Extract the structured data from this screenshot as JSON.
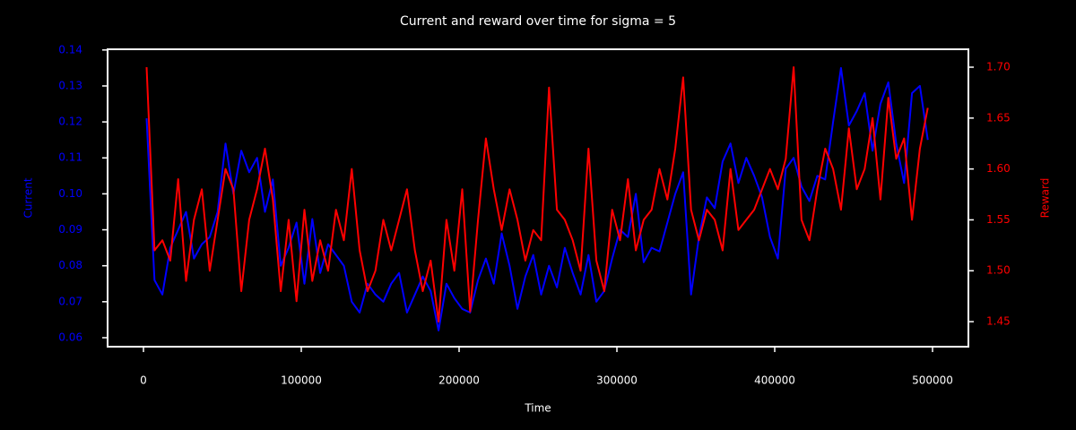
{
  "chart_data": {
    "type": "line",
    "title": "Current and reward over time for sigma = 5",
    "xlabel": "Time",
    "ylabel": "Current",
    "y2label": "Reward",
    "xlim": [
      -22727,
      522727
    ],
    "ylim": [
      0.0575,
      0.1402
    ],
    "y2lim": [
      1.4254,
      1.7176
    ],
    "xticks": [
      0,
      100000,
      200000,
      300000,
      400000,
      500000
    ],
    "yticks": [
      0.06,
      0.07,
      0.08,
      0.09,
      {
        "value": 0.1,
        "label": "0.10"
      },
      0.11,
      0.12,
      0.13,
      0.14
    ],
    "y2ticks": [
      1.45,
      {
        "value": 1.5,
        "label": "1.50"
      },
      1.55,
      {
        "value": 1.6,
        "label": "1.60"
      },
      1.65,
      {
        "value": 1.7,
        "label": "1.70"
      }
    ],
    "x": [
      2000,
      7000,
      12000,
      17000,
      22000,
      27000,
      32000,
      37000,
      42000,
      47000,
      52000,
      57000,
      62000,
      67000,
      72000,
      77000,
      82000,
      87000,
      92000,
      97000,
      102000,
      107000,
      112000,
      117000,
      122000,
      127000,
      132000,
      137000,
      142000,
      147000,
      152000,
      157000,
      162000,
      167000,
      172000,
      177000,
      182000,
      187000,
      192000,
      197000,
      202000,
      207000,
      212000,
      217000,
      222000,
      227000,
      232000,
      237000,
      242000,
      247000,
      252000,
      257000,
      262000,
      267000,
      272000,
      277000,
      282000,
      287000,
      292000,
      297000,
      302000,
      307000,
      312000,
      317000,
      322000,
      327000,
      332000,
      337000,
      342000,
      347000,
      352000,
      357000,
      362000,
      367000,
      372000,
      377000,
      382000,
      387000,
      392000,
      397000,
      402000,
      407000,
      412000,
      417000,
      422000,
      427000,
      432000,
      437000,
      442000,
      447000,
      452000,
      457000,
      462000,
      467000,
      472000,
      477000,
      482000,
      487000,
      492000,
      497000
    ],
    "series": [
      {
        "color": "#0000ff",
        "axis": "y",
        "values": [
          0.121,
          0.076,
          0.072,
          0.085,
          0.09,
          0.095,
          0.082,
          0.086,
          0.088,
          0.095,
          0.114,
          0.1,
          0.112,
          0.106,
          0.11,
          0.095,
          0.104,
          0.08,
          0.085,
          0.092,
          0.075,
          0.093,
          0.078,
          0.086,
          0.083,
          0.08,
          0.07,
          0.067,
          0.075,
          0.072,
          0.07,
          0.075,
          0.078,
          0.067,
          0.072,
          0.077,
          0.073,
          0.062,
          0.075,
          0.071,
          0.068,
          0.067,
          0.076,
          0.082,
          0.075,
          0.089,
          0.08,
          0.068,
          0.077,
          0.083,
          0.072,
          0.08,
          0.074,
          0.085,
          0.078,
          0.072,
          0.083,
          0.07,
          0.073,
          0.082,
          0.09,
          0.088,
          0.1,
          0.081,
          0.085,
          0.084,
          0.092,
          0.1,
          0.106,
          0.072,
          0.088,
          0.099,
          0.096,
          0.109,
          0.114,
          0.103,
          0.11,
          0.105,
          0.099,
          0.088,
          0.082,
          0.107,
          0.11,
          0.102,
          0.098,
          0.105,
          0.104,
          0.12,
          0.135,
          0.119,
          0.123,
          0.128,
          0.112,
          0.125,
          0.131,
          0.114,
          0.103,
          0.128,
          0.13,
          0.115
        ]
      },
      {
        "color": "#ff0000",
        "axis": "y2",
        "values": [
          1.7,
          1.52,
          1.53,
          1.51,
          1.59,
          1.49,
          1.55,
          1.58,
          1.5,
          1.55,
          1.6,
          1.58,
          1.48,
          1.55,
          1.58,
          1.62,
          1.57,
          1.48,
          1.55,
          1.47,
          1.56,
          1.49,
          1.53,
          1.5,
          1.56,
          1.53,
          1.6,
          1.52,
          1.48,
          1.5,
          1.55,
          1.52,
          1.55,
          1.58,
          1.52,
          1.48,
          1.51,
          1.45,
          1.55,
          1.5,
          1.58,
          1.46,
          1.55,
          1.63,
          1.58,
          1.54,
          1.58,
          1.55,
          1.51,
          1.54,
          1.53,
          1.68,
          1.56,
          1.55,
          1.53,
          1.5,
          1.62,
          1.51,
          1.48,
          1.56,
          1.53,
          1.59,
          1.52,
          1.55,
          1.56,
          1.6,
          1.57,
          1.62,
          1.69,
          1.56,
          1.53,
          1.56,
          1.55,
          1.52,
          1.6,
          1.54,
          1.55,
          1.56,
          1.58,
          1.6,
          1.58,
          1.61,
          1.7,
          1.55,
          1.53,
          1.58,
          1.62,
          1.6,
          1.56,
          1.64,
          1.58,
          1.6,
          1.65,
          1.57,
          1.67,
          1.61,
          1.63,
          1.55,
          1.62,
          1.66
        ]
      }
    ]
  }
}
